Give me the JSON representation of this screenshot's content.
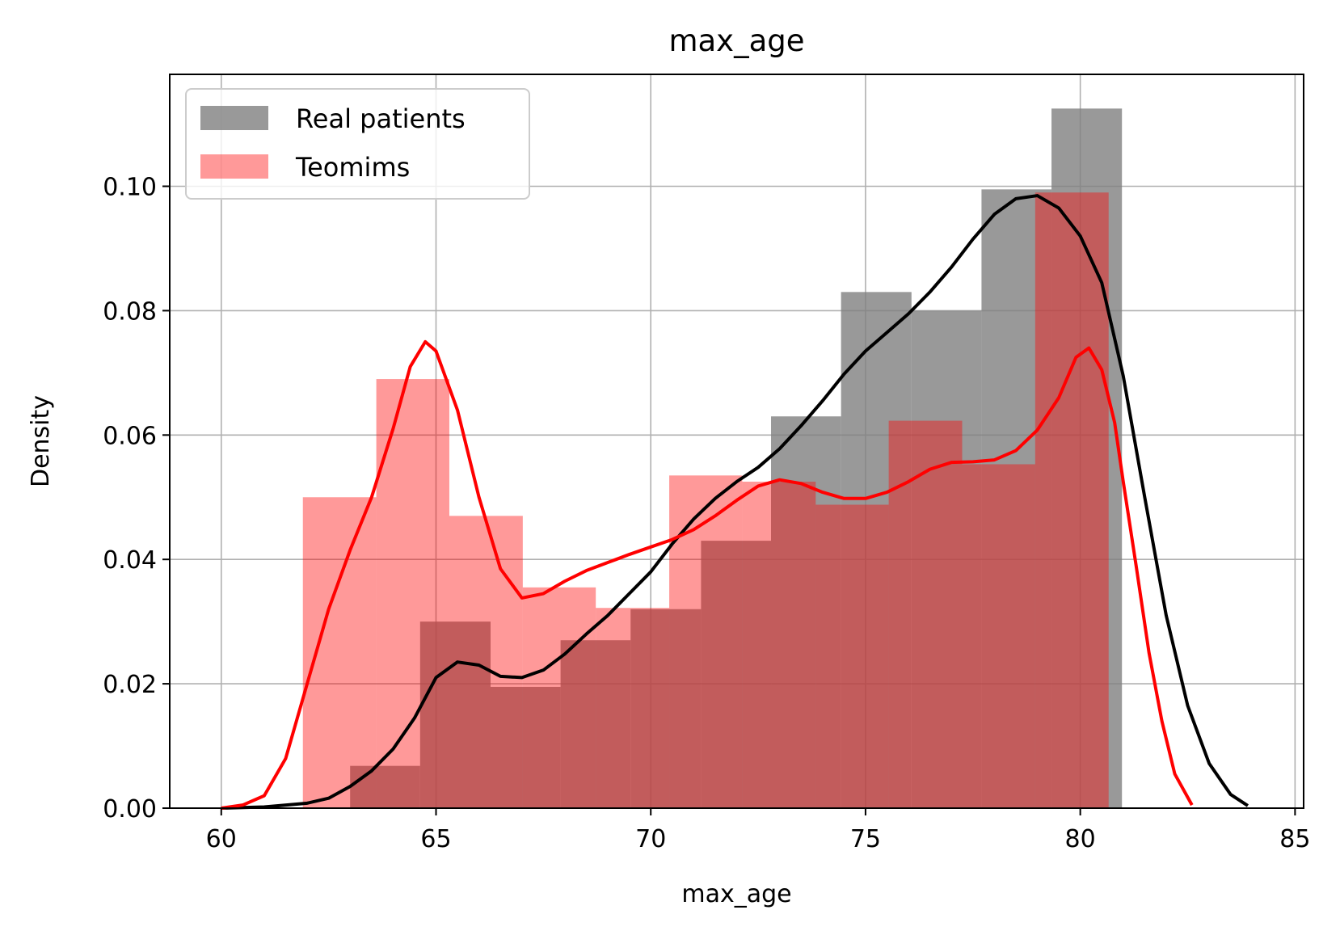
{
  "chart_data": {
    "type": "histogram",
    "title": "max_age",
    "xlabel": "max_age",
    "ylabel": "Density",
    "xlim": [
      58.8,
      85.2
    ],
    "ylim": [
      0,
      0.118
    ],
    "xticks": [
      60,
      65,
      70,
      75,
      80,
      85
    ],
    "xtick_labels": [
      "60",
      "65",
      "70",
      "75",
      "80",
      "85"
    ],
    "yticks": [
      0,
      0.02,
      0.04,
      0.06,
      0.08,
      0.1
    ],
    "ytick_labels": [
      "0.00",
      "0.02",
      "0.04",
      "0.06",
      "0.08",
      "0.10"
    ],
    "grid": true,
    "legend_position": "upper-left",
    "series": [
      {
        "name": "Real patients",
        "color": "#808080",
        "bar_alpha": 0.8,
        "bins": [
          63.0,
          64.63,
          66.27,
          67.9,
          69.53,
          71.17,
          72.8,
          74.43,
          76.07,
          77.7,
          79.33,
          80.97
        ],
        "densities": [
          0.0068,
          0.03,
          0.0195,
          0.027,
          0.032,
          0.043,
          0.063,
          0.083,
          0.08,
          0.0995,
          0.1125
        ],
        "kde_color": "#000000",
        "kde": [
          [
            60.0,
            0.0
          ],
          [
            61.0,
            0.0002
          ],
          [
            62.0,
            0.0008
          ],
          [
            62.5,
            0.0016
          ],
          [
            63.0,
            0.0035
          ],
          [
            63.5,
            0.006
          ],
          [
            64.0,
            0.0095
          ],
          [
            64.5,
            0.0145
          ],
          [
            65.0,
            0.021
          ],
          [
            65.5,
            0.0235
          ],
          [
            66.0,
            0.023
          ],
          [
            66.5,
            0.0212
          ],
          [
            67.0,
            0.021
          ],
          [
            67.5,
            0.0222
          ],
          [
            68.0,
            0.0248
          ],
          [
            68.5,
            0.028
          ],
          [
            69.0,
            0.031
          ],
          [
            69.5,
            0.0345
          ],
          [
            70.0,
            0.038
          ],
          [
            70.5,
            0.0425
          ],
          [
            71.0,
            0.0465
          ],
          [
            71.5,
            0.0498
          ],
          [
            72.0,
            0.0525
          ],
          [
            72.5,
            0.0548
          ],
          [
            73.0,
            0.0578
          ],
          [
            73.5,
            0.0615
          ],
          [
            74.0,
            0.0655
          ],
          [
            74.5,
            0.0698
          ],
          [
            75.0,
            0.0735
          ],
          [
            75.5,
            0.0765
          ],
          [
            76.0,
            0.0795
          ],
          [
            76.5,
            0.083
          ],
          [
            77.0,
            0.087
          ],
          [
            77.5,
            0.0915
          ],
          [
            78.0,
            0.0955
          ],
          [
            78.5,
            0.098
          ],
          [
            79.0,
            0.0985
          ],
          [
            79.5,
            0.0965
          ],
          [
            80.0,
            0.092
          ],
          [
            80.5,
            0.0845
          ],
          [
            81.0,
            0.0695
          ],
          [
            81.5,
            0.05
          ],
          [
            82.0,
            0.031
          ],
          [
            82.5,
            0.0165
          ],
          [
            83.0,
            0.0072
          ],
          [
            83.5,
            0.0022
          ],
          [
            83.9,
            0.0004
          ]
        ]
      },
      {
        "name": "Teomims",
        "color": "#ff0000",
        "bar_alpha": 0.4,
        "bins": [
          61.9,
          63.61,
          65.31,
          67.02,
          68.72,
          70.43,
          72.13,
          73.84,
          75.54,
          77.25,
          78.95,
          80.66
        ],
        "densities": [
          0.05,
          0.069,
          0.047,
          0.0355,
          0.0322,
          0.0535,
          0.0525,
          0.0488,
          0.0623,
          0.0553,
          0.099
        ],
        "kde_color": "#ff0000",
        "kde": [
          [
            60.0,
            0.0
          ],
          [
            60.5,
            0.0005
          ],
          [
            61.0,
            0.002
          ],
          [
            61.5,
            0.008
          ],
          [
            62.0,
            0.02
          ],
          [
            62.5,
            0.032
          ],
          [
            63.0,
            0.0415
          ],
          [
            63.5,
            0.05
          ],
          [
            64.0,
            0.061
          ],
          [
            64.4,
            0.071
          ],
          [
            64.75,
            0.075
          ],
          [
            65.0,
            0.0735
          ],
          [
            65.5,
            0.064
          ],
          [
            66.0,
            0.05
          ],
          [
            66.5,
            0.0385
          ],
          [
            67.0,
            0.0338
          ],
          [
            67.5,
            0.0345
          ],
          [
            68.0,
            0.0365
          ],
          [
            68.5,
            0.0382
          ],
          [
            69.0,
            0.0395
          ],
          [
            69.5,
            0.0408
          ],
          [
            70.0,
            0.042
          ],
          [
            70.5,
            0.0432
          ],
          [
            71.0,
            0.0448
          ],
          [
            71.5,
            0.047
          ],
          [
            72.0,
            0.0495
          ],
          [
            72.5,
            0.0518
          ],
          [
            73.0,
            0.0528
          ],
          [
            73.5,
            0.0522
          ],
          [
            74.0,
            0.0508
          ],
          [
            74.5,
            0.0498
          ],
          [
            75.0,
            0.0498
          ],
          [
            75.5,
            0.0508
          ],
          [
            76.0,
            0.0525
          ],
          [
            76.5,
            0.0545
          ],
          [
            77.0,
            0.0556
          ],
          [
            77.5,
            0.0557
          ],
          [
            78.0,
            0.056
          ],
          [
            78.5,
            0.0575
          ],
          [
            79.0,
            0.0608
          ],
          [
            79.5,
            0.066
          ],
          [
            79.9,
            0.0725
          ],
          [
            80.2,
            0.074
          ],
          [
            80.5,
            0.0705
          ],
          [
            80.8,
            0.062
          ],
          [
            81.0,
            0.0525
          ],
          [
            81.3,
            0.039
          ],
          [
            81.6,
            0.025
          ],
          [
            81.9,
            0.014
          ],
          [
            82.2,
            0.0055
          ],
          [
            82.6,
            0.0005
          ]
        ]
      }
    ]
  }
}
